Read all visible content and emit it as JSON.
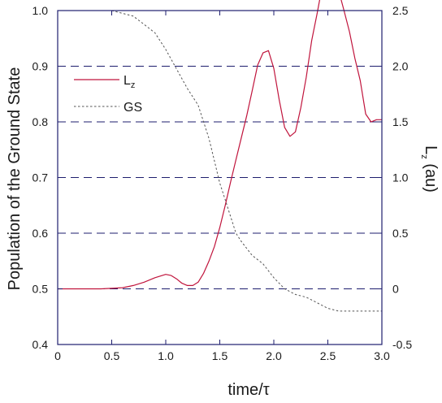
{
  "chart_data": {
    "type": "line",
    "xlabel": "time/τ",
    "ylabel_left": "Population of the Ground State",
    "ylabel_right": "Lz (au)",
    "ylabel_right_parts": {
      "main": "L",
      "sub": "z",
      "rest": " (au)"
    },
    "xlim": [
      0,
      3.0
    ],
    "ylim_left": [
      0.4,
      1.0
    ],
    "ylim_right": [
      -0.5,
      2.5
    ],
    "x_ticks": [
      "0",
      "0.5",
      "1.0",
      "1.5",
      "2.0",
      "2.5",
      "3.0"
    ],
    "y_ticks_left": [
      "0.4",
      "0.5",
      "0.6",
      "0.7",
      "0.8",
      "0.9",
      "1.0"
    ],
    "y_ticks_right": [
      "-0.5",
      "0",
      "0.5",
      "1.0",
      "1.5",
      "2.0",
      "2.5"
    ],
    "grid": "horizontal dashed lines at right-axis ticks",
    "legend_position": "top-left",
    "series": [
      {
        "name": "Lz",
        "legend_parts": {
          "main": "L",
          "sub": "z"
        },
        "axis": "right",
        "style": "solid",
        "color": "#c0143c",
        "x": [
          0,
          0.2,
          0.4,
          0.6,
          0.7,
          0.8,
          0.9,
          1.0,
          1.05,
          1.1,
          1.15,
          1.2,
          1.25,
          1.3,
          1.35,
          1.4,
          1.45,
          1.5,
          1.55,
          1.6,
          1.65,
          1.7,
          1.75,
          1.8,
          1.85,
          1.9,
          1.95,
          2.0,
          2.05,
          2.1,
          2.15,
          2.2,
          2.25,
          2.3,
          2.35,
          2.4,
          2.45,
          2.5,
          2.55,
          2.6,
          2.65,
          2.7,
          2.75,
          2.8,
          2.85,
          2.9,
          2.95,
          3.0
        ],
        "y": [
          0,
          0,
          0,
          0.01,
          0.03,
          0.06,
          0.1,
          0.13,
          0.12,
          0.09,
          0.05,
          0.03,
          0.03,
          0.06,
          0.14,
          0.25,
          0.38,
          0.55,
          0.75,
          0.96,
          1.16,
          1.36,
          1.56,
          1.78,
          2.01,
          2.12,
          2.14,
          1.98,
          1.7,
          1.45,
          1.37,
          1.41,
          1.63,
          1.9,
          2.23,
          2.47,
          2.73,
          2.79,
          2.79,
          2.68,
          2.5,
          2.31,
          2.07,
          1.87,
          1.57,
          1.5,
          1.52,
          1.52
        ]
      },
      {
        "name": "GS",
        "axis": "left",
        "style": "dashed",
        "color": "#555555",
        "x": [
          0.5,
          0.6,
          0.7,
          0.8,
          0.9,
          1.0,
          1.1,
          1.2,
          1.3,
          1.35,
          1.4,
          1.45,
          1.5,
          1.55,
          1.6,
          1.65,
          1.7,
          1.8,
          1.9,
          2.0,
          2.1,
          2.2,
          2.3,
          2.4,
          2.5,
          2.6,
          2.7,
          2.8,
          3.0
        ],
        "y": [
          1.0,
          0.995,
          0.99,
          0.975,
          0.96,
          0.93,
          0.895,
          0.86,
          0.83,
          0.8,
          0.77,
          0.73,
          0.69,
          0.66,
          0.63,
          0.6,
          0.585,
          0.56,
          0.545,
          0.52,
          0.5,
          0.49,
          0.485,
          0.475,
          0.465,
          0.46,
          0.46,
          0.46,
          0.46
        ]
      }
    ]
  }
}
